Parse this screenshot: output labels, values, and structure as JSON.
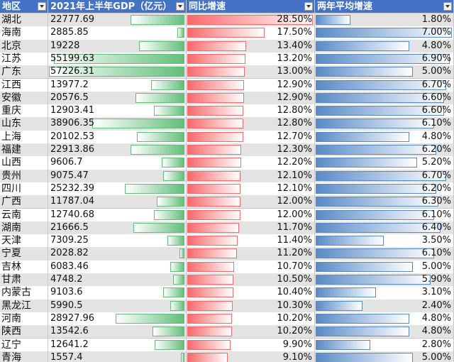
{
  "table": {
    "headers": [
      "地区",
      "2021年上半年GDP（亿元）",
      "同比增速",
      "两年平均增速"
    ],
    "rows": [
      [
        "湖北",
        "22777.69",
        "28.50%",
        "1.80%"
      ],
      [
        "海南",
        "2885.85",
        "17.50%",
        "7.00%"
      ],
      [
        "北京",
        "19228",
        "13.40%",
        "4.80%"
      ],
      [
        "江苏",
        "55199.63",
        "13.20%",
        "6.90%"
      ],
      [
        "广东",
        "57226.31",
        "13.00%",
        "5.00%"
      ],
      [
        "江西",
        "13977.2",
        "12.90%",
        "6.70%"
      ],
      [
        "安徽",
        "20576.5",
        "12.90%",
        "6.60%"
      ],
      [
        "重庆",
        "12903.41",
        "12.80%",
        "6.60%"
      ],
      [
        "山东",
        "38906.35",
        "12.80%",
        "6.10%"
      ],
      [
        "上海",
        "20102.53",
        "12.70%",
        "4.80%"
      ],
      [
        "福建",
        "22913.86",
        "12.30%",
        "6.20%"
      ],
      [
        "山西",
        "9606.7",
        "12.20%",
        "5.20%"
      ],
      [
        "贵州",
        "9075.47",
        "12.10%",
        "6.70%"
      ],
      [
        "四川",
        "25232.39",
        "12.10%",
        "6.20%"
      ],
      [
        "广西",
        "11787.04",
        "12.00%",
        "6.30%"
      ],
      [
        "云南",
        "12740.68",
        "12.00%",
        "6.10%"
      ],
      [
        "湖南",
        "21666.5",
        "11.70%",
        "6.40%"
      ],
      [
        "天津",
        "7309.25",
        "11.40%",
        "3.50%"
      ],
      [
        "宁夏",
        "2028.82",
        "11.20%",
        "6.10%"
      ],
      [
        "吉林",
        "6083.46",
        "10.70%",
        "5.00%"
      ],
      [
        "甘肃",
        "4748.2",
        "10.50%",
        "5.90%"
      ],
      [
        "内蒙古",
        "9103.6",
        "10.40%",
        "3.10%"
      ],
      [
        "黑龙江",
        "5990.5",
        "10.30%",
        "2.40%"
      ],
      [
        "河南",
        "28927.96",
        "10.20%",
        "4.80%"
      ],
      [
        "陕西",
        "13542.6",
        "10.20%",
        "4.80%"
      ],
      [
        "辽宁",
        "12641.2",
        "9.90%",
        "2.80%"
      ],
      [
        "青海",
        "1557.4",
        "9.10%",
        "5.00%"
      ]
    ]
  }
}
